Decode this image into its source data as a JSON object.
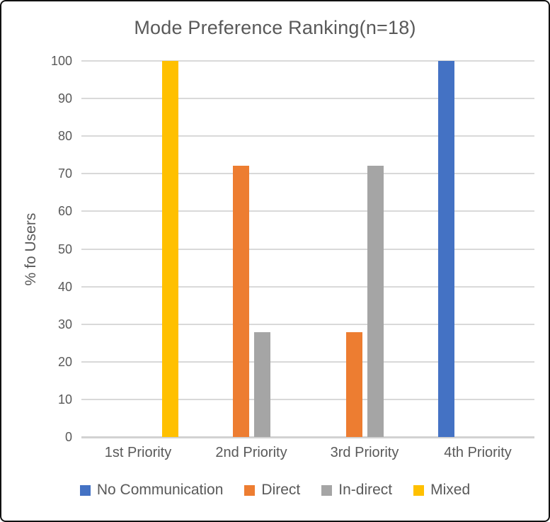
{
  "chart_data": {
    "type": "bar",
    "title": "Mode Preference Ranking(n=18)",
    "xlabel": "",
    "ylabel": "% fo Users",
    "categories": [
      "1st Priority",
      "2nd Priority",
      "3rd Priority",
      "4th Priority"
    ],
    "series": [
      {
        "name": "No Communication",
        "color": "#4472C4",
        "values": [
          0,
          0,
          0,
          100
        ]
      },
      {
        "name": "Direct",
        "color": "#ED7D31",
        "values": [
          0,
          72.2,
          27.8,
          0
        ]
      },
      {
        "name": "In-direct",
        "color": "#A5A5A5",
        "values": [
          0,
          27.8,
          72.2,
          0
        ]
      },
      {
        "name": "Mixed",
        "color": "#FFC000",
        "values": [
          100,
          0,
          0,
          0
        ]
      }
    ],
    "ylim": [
      0,
      100
    ],
    "yticks": [
      0,
      10,
      20,
      30,
      40,
      50,
      60,
      70,
      80,
      90,
      100
    ],
    "grid": true,
    "legend_position": "bottom"
  }
}
